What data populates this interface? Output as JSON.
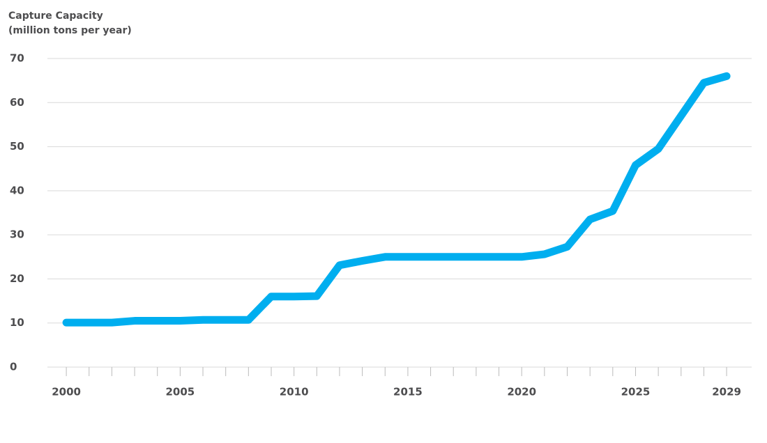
{
  "chart_data": {
    "type": "line",
    "ylabel": [
      "Capture Capacity",
      "(million tons per year)"
    ],
    "x": [
      2000,
      2001,
      2002,
      2003,
      2004,
      2005,
      2006,
      2007,
      2008,
      2009,
      2010,
      2011,
      2012,
      2013,
      2014,
      2015,
      2016,
      2017,
      2018,
      2019,
      2020,
      2021,
      2022,
      2023,
      2024,
      2025,
      2026,
      2027,
      2028,
      2029
    ],
    "series": [
      {
        "color": "#00aeef",
        "values": [
          10.1,
          10.1,
          10.1,
          10.5,
          10.5,
          10.5,
          10.7,
          10.7,
          10.7,
          16.0,
          16.0,
          16.1,
          23.1,
          24.1,
          25.0,
          25.0,
          25.0,
          25.0,
          25.0,
          25.0,
          25.0,
          25.6,
          27.3,
          33.5,
          35.4,
          45.8,
          49.5,
          57.0,
          64.5,
          66.0
        ]
      }
    ],
    "xlim": [
      1999.17,
      2030.1
    ],
    "xticks": [
      2000,
      2005,
      2010,
      2015,
      2020,
      2025,
      2029
    ],
    "xminorticks": [
      2000,
      2001,
      2002,
      2003,
      2004,
      2005,
      2006,
      2007,
      2008,
      2009,
      2010,
      2011,
      2012,
      2013,
      2014,
      2015,
      2016,
      2017,
      2018,
      2019,
      2020,
      2021,
      2022,
      2023,
      2024,
      2025,
      2026,
      2027,
      2028,
      2029
    ],
    "ylim": [
      0,
      70
    ],
    "yticks": [
      0,
      10,
      20,
      30,
      40,
      50,
      60,
      70
    ],
    "grid": true
  }
}
